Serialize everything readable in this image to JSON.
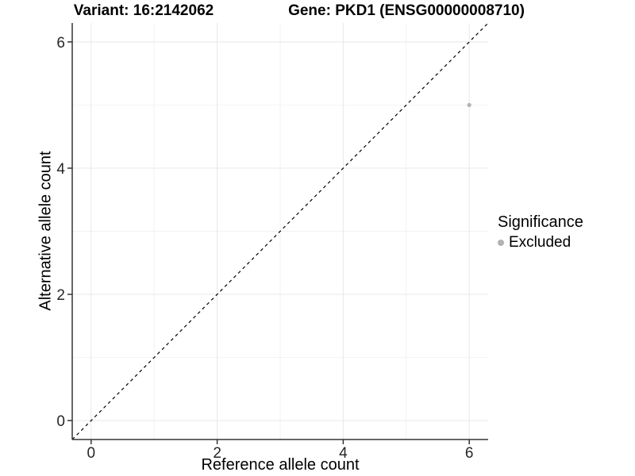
{
  "header": {
    "variant_title": "Variant: 16:2142062",
    "gene_title": "Gene: PKD1 (ENSG00000008710)"
  },
  "axes": {
    "x_label": "Reference allele count",
    "y_label": "Alternative allele count"
  },
  "legend": {
    "title": "Significance",
    "items": [
      {
        "label": "Excluded",
        "color": "#b3b3b3"
      }
    ]
  },
  "colors": {
    "background": "#ffffff",
    "point": "#b3b3b3",
    "grid_major": "#e8e8e8",
    "grid_minor": "#f2f2f2",
    "axis_line": "#333333",
    "identity_line": "#000000",
    "tick_text": "#262626"
  },
  "chart_data": {
    "type": "scatter",
    "title": "Variant: 16:2142062   Gene: PKD1 (ENSG00000008710)",
    "xlabel": "Reference allele count",
    "ylabel": "Alternative allele count",
    "x_range": [
      -0.3,
      6.3
    ],
    "y_range": [
      -0.3,
      6.3
    ],
    "x_major_ticks": [
      0,
      2,
      4,
      6
    ],
    "y_major_ticks": [
      0,
      2,
      4,
      6
    ],
    "x_minor_ticks": [
      1,
      3,
      5
    ],
    "y_minor_ticks": [
      1,
      3,
      5
    ],
    "grid": true,
    "identity_line_y_equals_x": true,
    "legend_title": "Significance",
    "legend_position": "right",
    "series": [
      {
        "name": "Excluded",
        "color": "#b3b3b3",
        "points": [
          {
            "x": 6,
            "y": 5
          }
        ]
      }
    ]
  }
}
